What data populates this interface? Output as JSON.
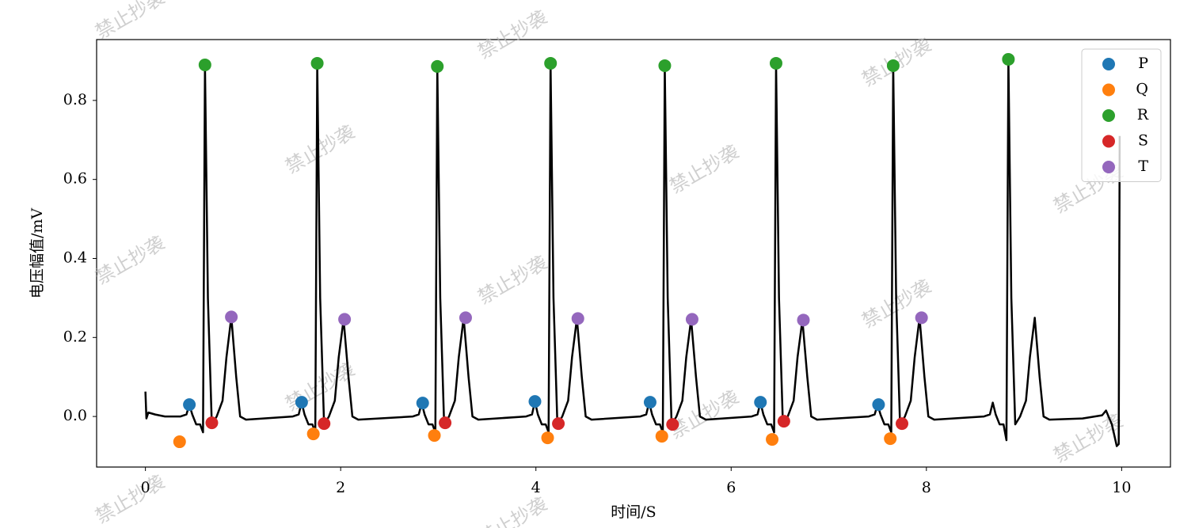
{
  "chart_data": {
    "type": "line",
    "xlabel": "时间/S",
    "ylabel": "电压幅值/mV",
    "watermark": "禁止抄袭",
    "xlim": [
      -0.5,
      10.5
    ],
    "ylim": [
      -0.128,
      0.954
    ],
    "xticks": [
      0,
      2,
      4,
      6,
      8,
      10
    ],
    "yticks": [
      {
        "value": 0,
        "label": "0.0"
      },
      0.2,
      0.4,
      0.6,
      0.8
    ],
    "legend": "upper right",
    "series": [
      {
        "type": "line",
        "color": "#000000",
        "x": [
          0,
          0.01,
          0.03,
          0.1,
          0.2,
          0.36,
          0.42,
          0.45,
          0.48,
          0.52,
          0.56,
          0.59,
          0.61,
          0.64,
          0.68,
          0.73,
          0.79,
          0.83,
          0.88,
          0.93,
          0.97,
          1.03,
          1.51,
          1.57,
          1.6,
          1.63,
          1.67,
          1.71,
          1.74,
          1.76,
          1.79,
          1.83,
          1.88,
          1.94,
          1.98,
          2.03,
          2.08,
          2.12,
          2.18,
          2.74,
          2.8,
          2.83,
          2.86,
          2.9,
          2.94,
          2.97,
          2.99,
          3.02,
          3.06,
          3.11,
          3.17,
          3.21,
          3.26,
          3.31,
          3.35,
          3.41,
          3.9,
          3.96,
          3.99,
          4.02,
          4.06,
          4.1,
          4.13,
          4.15,
          4.18,
          4.22,
          4.27,
          4.33,
          4.37,
          4.42,
          4.47,
          4.51,
          4.57,
          5.07,
          5.13,
          5.16,
          5.19,
          5.23,
          5.27,
          5.3,
          5.32,
          5.35,
          5.39,
          5.44,
          5.5,
          5.54,
          5.59,
          5.64,
          5.68,
          5.74,
          6.21,
          6.27,
          6.3,
          6.33,
          6.37,
          6.41,
          6.44,
          6.46,
          6.49,
          6.53,
          6.58,
          6.64,
          6.68,
          6.73,
          6.78,
          6.82,
          6.88,
          7.41,
          7.47,
          7.5,
          7.53,
          7.57,
          7.61,
          7.64,
          7.66,
          7.69,
          7.73,
          7.78,
          7.84,
          7.88,
          7.93,
          7.98,
          8.02,
          8.08,
          8.59,
          8.65,
          8.68,
          8.71,
          8.75,
          8.79,
          8.82,
          8.84,
          8.87,
          8.91,
          8.96,
          9.02,
          9.06,
          9.11,
          9.16,
          9.2,
          9.26,
          9.6,
          9.8,
          9.84,
          9.9,
          9.95,
          9.97,
          9.98
        ],
        "values": [
          0.063,
          -0.005,
          0.01,
          0.005,
          0,
          0,
          0.005,
          0.03,
          0.005,
          -0.02,
          -0.02,
          -0.04,
          0.89,
          0.3,
          -0.02,
          0,
          0.04,
          0.15,
          0.252,
          0.1,
          0,
          -0.008,
          0,
          0.005,
          0.036,
          0.005,
          -0.02,
          -0.02,
          -0.04,
          0.894,
          0.3,
          -0.02,
          0,
          0.04,
          0.15,
          0.246,
          0.1,
          0,
          -0.008,
          0,
          0.005,
          0.034,
          0.005,
          -0.02,
          -0.02,
          -0.04,
          0.886,
          0.3,
          -0.02,
          0,
          0.04,
          0.15,
          0.25,
          0.1,
          0,
          -0.008,
          0,
          0.005,
          0.038,
          0.005,
          -0.02,
          -0.02,
          -0.04,
          0.894,
          0.3,
          -0.02,
          0,
          0.04,
          0.15,
          0.248,
          0.1,
          0,
          -0.008,
          0,
          0.005,
          0.036,
          0.005,
          -0.02,
          -0.02,
          -0.04,
          0.888,
          0.3,
          -0.02,
          0,
          0.04,
          0.15,
          0.246,
          0.1,
          0,
          -0.008,
          0,
          0.005,
          0.036,
          0.005,
          -0.02,
          -0.02,
          -0.04,
          0.894,
          0.3,
          -0.02,
          0,
          0.04,
          0.15,
          0.244,
          0.1,
          0,
          -0.008,
          0,
          0.005,
          0.03,
          0.005,
          -0.02,
          -0.02,
          -0.04,
          0.888,
          0.3,
          -0.02,
          0,
          0.04,
          0.15,
          0.25,
          0.1,
          0,
          -0.008,
          0,
          0.005,
          0.035,
          0.005,
          -0.02,
          -0.02,
          -0.06,
          0.904,
          0.3,
          -0.02,
          0,
          0.04,
          0.15,
          0.25,
          0.1,
          0,
          -0.008,
          -0.005,
          0.003,
          0.015,
          -0.02,
          -0.075,
          -0.07,
          0.71
        ]
      },
      {
        "type": "scatter",
        "name": "P",
        "color": "#1f77b4",
        "x": [
          0.45,
          1.6,
          2.84,
          3.99,
          5.17,
          6.3,
          7.51
        ],
        "values": [
          0.03,
          0.036,
          0.034,
          0.038,
          0.036,
          0.036,
          0.03
        ]
      },
      {
        "type": "scatter",
        "name": "Q",
        "color": "#ff7f0e",
        "x": [
          0.35,
          1.72,
          2.96,
          4.12,
          5.29,
          6.42,
          7.63
        ],
        "values": [
          -0.064,
          -0.044,
          -0.048,
          -0.054,
          -0.05,
          -0.058,
          -0.056
        ]
      },
      {
        "type": "scatter",
        "name": "R",
        "color": "#2ca02c",
        "x": [
          0.61,
          1.76,
          2.99,
          4.15,
          5.32,
          6.46,
          7.66,
          8.84
        ],
        "values": [
          0.89,
          0.894,
          0.886,
          0.894,
          0.888,
          0.894,
          0.888,
          0.904
        ]
      },
      {
        "type": "scatter",
        "name": "S",
        "color": "#d62728",
        "x": [
          0.68,
          1.83,
          3.07,
          4.23,
          5.4,
          6.54,
          7.75
        ],
        "values": [
          -0.016,
          -0.018,
          -0.016,
          -0.018,
          -0.02,
          -0.012,
          -0.018
        ]
      },
      {
        "type": "scatter",
        "name": "T",
        "color": "#9467bd",
        "x": [
          0.88,
          2.04,
          3.28,
          4.43,
          5.6,
          6.74,
          7.95
        ],
        "values": [
          0.252,
          0.246,
          0.25,
          0.248,
          0.246,
          0.244,
          0.25
        ]
      }
    ]
  }
}
